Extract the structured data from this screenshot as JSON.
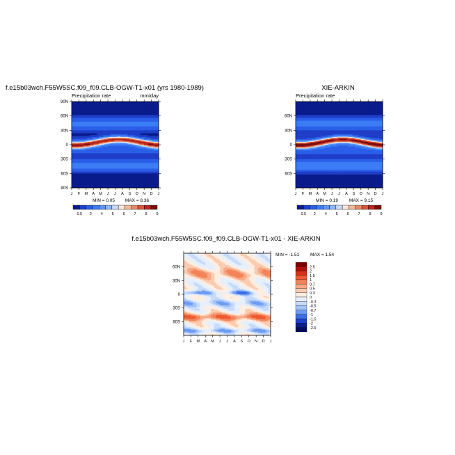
{
  "figure": {
    "title_left": "f.e15b03wch.F55W5SC.f09_f09.CLB-OGW-T1-x01 (yrs 1980-1989)",
    "title_right": "XIE-ARKIN",
    "title_diff": "f.e15b03wch.F55W5SC.f09_f09.CLB-OGW-T1-x01 - XIE-ARKIN"
  },
  "chart_data": [
    {
      "type": "heatmap",
      "name": "model",
      "subtitle": "Precipitation rate",
      "units": "mm/day",
      "x_tick_labels": [
        "J",
        "F",
        "M",
        "A",
        "M",
        "J",
        "J",
        "A",
        "S",
        "O",
        "N",
        "D",
        "J"
      ],
      "y_tick_labels": [
        "90N",
        "60N",
        "30N",
        "0",
        "30S",
        "60S",
        "90S"
      ],
      "y_tick_values": [
        90,
        60,
        30,
        0,
        -30,
        -60,
        -90
      ],
      "ylim": [
        -90,
        90
      ],
      "min_label": "MIN = 0.05",
      "max_label": "MAX = 8.36",
      "min": 0.05,
      "max": 8.36,
      "colorbar_levels": [
        0.5,
        1,
        2,
        3,
        4,
        4.5,
        5,
        6,
        6.5,
        7,
        8,
        9
      ],
      "colorbar_labels": [
        "0.5",
        "2",
        "4",
        "5",
        "6",
        "7",
        "8",
        "9"
      ]
    },
    {
      "type": "heatmap",
      "name": "obs",
      "subtitle": "Precipitation rate",
      "units": "",
      "x_tick_labels": [
        "J",
        "F",
        "M",
        "A",
        "M",
        "J",
        "J",
        "A",
        "S",
        "O",
        "N",
        "D",
        "J"
      ],
      "y_tick_labels": [
        "60N",
        "30N",
        "0",
        "30S",
        "60S"
      ],
      "y_tick_values": [
        60,
        30,
        0,
        -30,
        -60
      ],
      "ylim": [
        -90,
        90
      ],
      "min_label": "MIN = 0.19",
      "max_label": "MAX = 9.15",
      "min": 0.19,
      "max": 9.15,
      "colorbar_levels": [
        0.5,
        1,
        2,
        3,
        4,
        4.5,
        5,
        6,
        6.5,
        7,
        8,
        9
      ],
      "colorbar_labels": [
        "0.5",
        "2",
        "4",
        "5",
        "6",
        "7",
        "8",
        "9"
      ]
    },
    {
      "type": "heatmap",
      "name": "difference",
      "x_tick_labels": [
        "J",
        "F",
        "M",
        "A",
        "M",
        "J",
        "J",
        "A",
        "S",
        "O",
        "N",
        "D",
        "J"
      ],
      "y_tick_labels": [
        "60N",
        "30N",
        "0",
        "30S",
        "60S"
      ],
      "y_tick_values": [
        60,
        30,
        0,
        -30,
        -60
      ],
      "ylim": [
        -90,
        90
      ],
      "min_label": "MIN = -1.51",
      "max_label": "MAX = 1.54",
      "min": -1.51,
      "max": 1.54,
      "colorbar_levels": [
        "2.5",
        "2",
        "1.5",
        "1",
        "0.7",
        "0.5",
        "0.3",
        "0",
        "-0.3",
        "-0.5",
        "-0.7",
        "-1",
        "-1.5",
        "-2",
        "-2.5"
      ]
    }
  ],
  "colors": {
    "abs_scale": [
      "#0a1c8c",
      "#1e3ec8",
      "#2a5ee8",
      "#3c7cf4",
      "#5a96f8",
      "#8cb6fa",
      "#c4daf7",
      "#f6e6dc",
      "#f2b89a",
      "#e88a66",
      "#d8553a",
      "#b8281e",
      "#7c0c0c"
    ],
    "diff_scale": [
      "#7a0000",
      "#b0100a",
      "#d83018",
      "#ec5a32",
      "#f3845a",
      "#f7a884",
      "#fbcbb0",
      "#fdeee2",
      "#e6effc",
      "#c6dafa",
      "#a2c2f8",
      "#6e9cf2",
      "#3e6ee6",
      "#1c40c8",
      "#0a1c8c",
      "#020a5c"
    ]
  }
}
